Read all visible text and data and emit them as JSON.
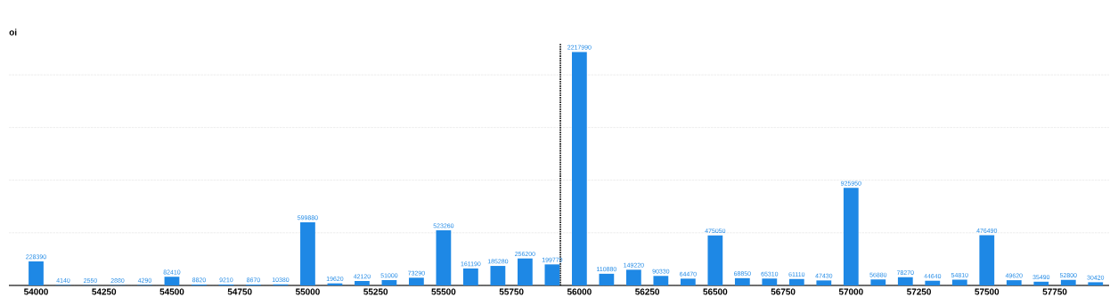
{
  "chart_data": {
    "type": "bar",
    "ylabel": "oi",
    "x": [
      54000,
      54100,
      54200,
      54300,
      54400,
      54500,
      54600,
      54700,
      54800,
      54900,
      55000,
      55100,
      55200,
      55300,
      55400,
      55500,
      55600,
      55700,
      55800,
      55900,
      56000,
      56100,
      56200,
      56300,
      56400,
      56500,
      56600,
      56700,
      56800,
      56900,
      57000,
      57100,
      57200,
      57300,
      57400,
      57500,
      57600,
      57700,
      57800,
      57900
    ],
    "values": [
      228390,
      4140,
      2550,
      2880,
      4290,
      82410,
      8820,
      9210,
      8670,
      10380,
      599880,
      19620,
      42120,
      51000,
      73290,
      523260,
      161190,
      185280,
      256200,
      199770,
      2217990,
      110880,
      149220,
      90330,
      64470,
      475050,
      68850,
      65310,
      61110,
      47430,
      925950,
      56880,
      78270,
      44640,
      54810,
      476490,
      49620,
      35490,
      52800,
      30420
    ],
    "color": "#1e88e5",
    "data_labels": true,
    "xlim": [
      53900,
      57950
    ],
    "xticks": [
      54000,
      54250,
      54500,
      54750,
      55000,
      55250,
      55500,
      55750,
      56000,
      56250,
      56500,
      56750,
      57000,
      57250,
      57500,
      57750
    ],
    "tick_labels": "x",
    "grid": "y",
    "ref_lines": [
      {
        "axis": "x",
        "value": 55930,
        "color": "#000000",
        "line_style": "dotted"
      }
    ]
  }
}
